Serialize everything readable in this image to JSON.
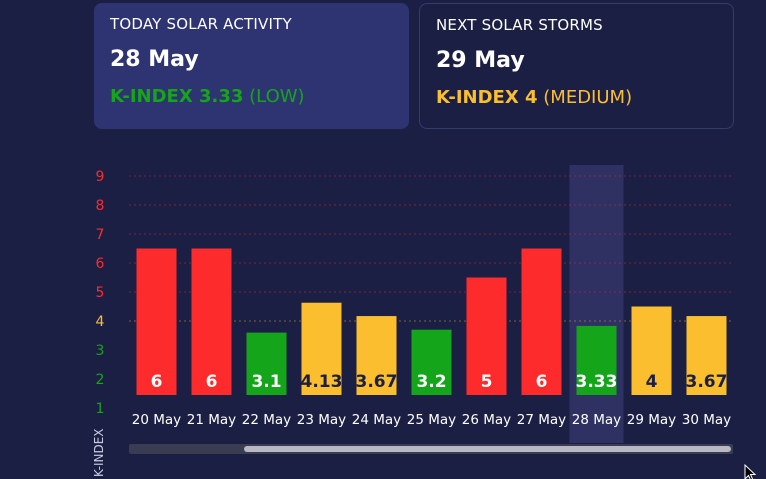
{
  "cards": {
    "today": {
      "label": "TODAY SOLAR ACTIVITY",
      "date": "28 May",
      "kindex_prefix": "K-INDEX 3.33",
      "kindex_level": "(LOW)",
      "color": "#14a51b"
    },
    "next": {
      "label": "NEXT SOLAR STORMS",
      "date": "29 May",
      "kindex_prefix": "K-INDEX 4",
      "kindex_level": "(MEDIUM)",
      "color": "#fbbe2e"
    }
  },
  "colors": {
    "high": "#fd2b2b",
    "medium": "#fbbe2e",
    "low": "#14a51b",
    "background": "#1c1f44",
    "highlight_column": "#2e3162",
    "scrollbar_track": "#3a3d52",
    "scrollbar_thumb": "#b8b8c4"
  },
  "chart_data": {
    "type": "bar",
    "ylabel": "K-INDEX",
    "ylim": [
      1,
      9
    ],
    "yticks": [
      1,
      2,
      3,
      4,
      5,
      6,
      7,
      8,
      9
    ],
    "highlight_category": "28 May",
    "grid": true,
    "categories": [
      "20 May",
      "21 May",
      "22 May",
      "23 May",
      "24 May",
      "25 May",
      "26 May",
      "27 May",
      "28 May",
      "29 May",
      "30 May"
    ],
    "values": [
      6,
      6,
      3.1,
      4.13,
      3.67,
      3.2,
      5,
      6,
      3.33,
      4,
      3.67
    ],
    "value_labels": [
      "6",
      "6",
      "3.1",
      "4.13",
      "3.67",
      "3.2",
      "5",
      "6",
      "3.33",
      "4",
      "3.67"
    ],
    "levels": [
      "high",
      "high",
      "low",
      "medium",
      "medium",
      "low",
      "high",
      "high",
      "low",
      "medium",
      "medium"
    ]
  },
  "scrollbar": {
    "visible_fraction": 0.8,
    "scroll_position": 1.0
  },
  "cursor": {
    "icon": "mouse-pointer-icon"
  }
}
